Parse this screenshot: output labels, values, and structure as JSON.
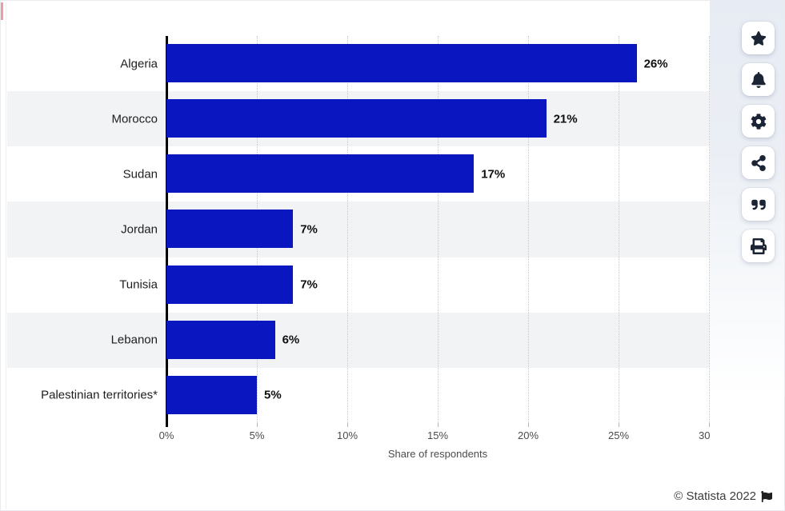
{
  "chart_data": {
    "type": "bar",
    "orientation": "horizontal",
    "title": "",
    "categories": [
      "Algeria",
      "Morocco",
      "Sudan",
      "Jordan",
      "Tunisia",
      "Lebanon",
      "Palestinian territories*"
    ],
    "values": [
      26,
      21,
      17,
      7,
      7,
      6,
      5
    ],
    "value_labels": [
      "26%",
      "21%",
      "17%",
      "7%",
      "7%",
      "6%",
      "5%"
    ],
    "xlabel": "Share of respondents",
    "ylabel": "",
    "x_ticks": [
      "0%",
      "5%",
      "10%",
      "15%",
      "20%",
      "25%",
      "30%"
    ],
    "xlim": [
      0,
      30
    ],
    "grid": "vertical-dotted",
    "legend": "none",
    "bar_color": "#0a17c1",
    "row_stripe_color": "#f2f3f5",
    "gridline_color": "#c5c7cb",
    "axis_color": "#000000"
  },
  "toolbar": {
    "buttons": [
      {
        "name": "favorite",
        "icon": "star-icon"
      },
      {
        "name": "notifications",
        "icon": "bell-icon"
      },
      {
        "name": "settings",
        "icon": "gear-icon"
      },
      {
        "name": "share",
        "icon": "share-icon"
      },
      {
        "name": "cite",
        "icon": "quote-icon"
      },
      {
        "name": "print",
        "icon": "print-icon"
      }
    ]
  },
  "footer": {
    "copyright": "© Statista 2022",
    "flag_icon": "flag-icon"
  }
}
